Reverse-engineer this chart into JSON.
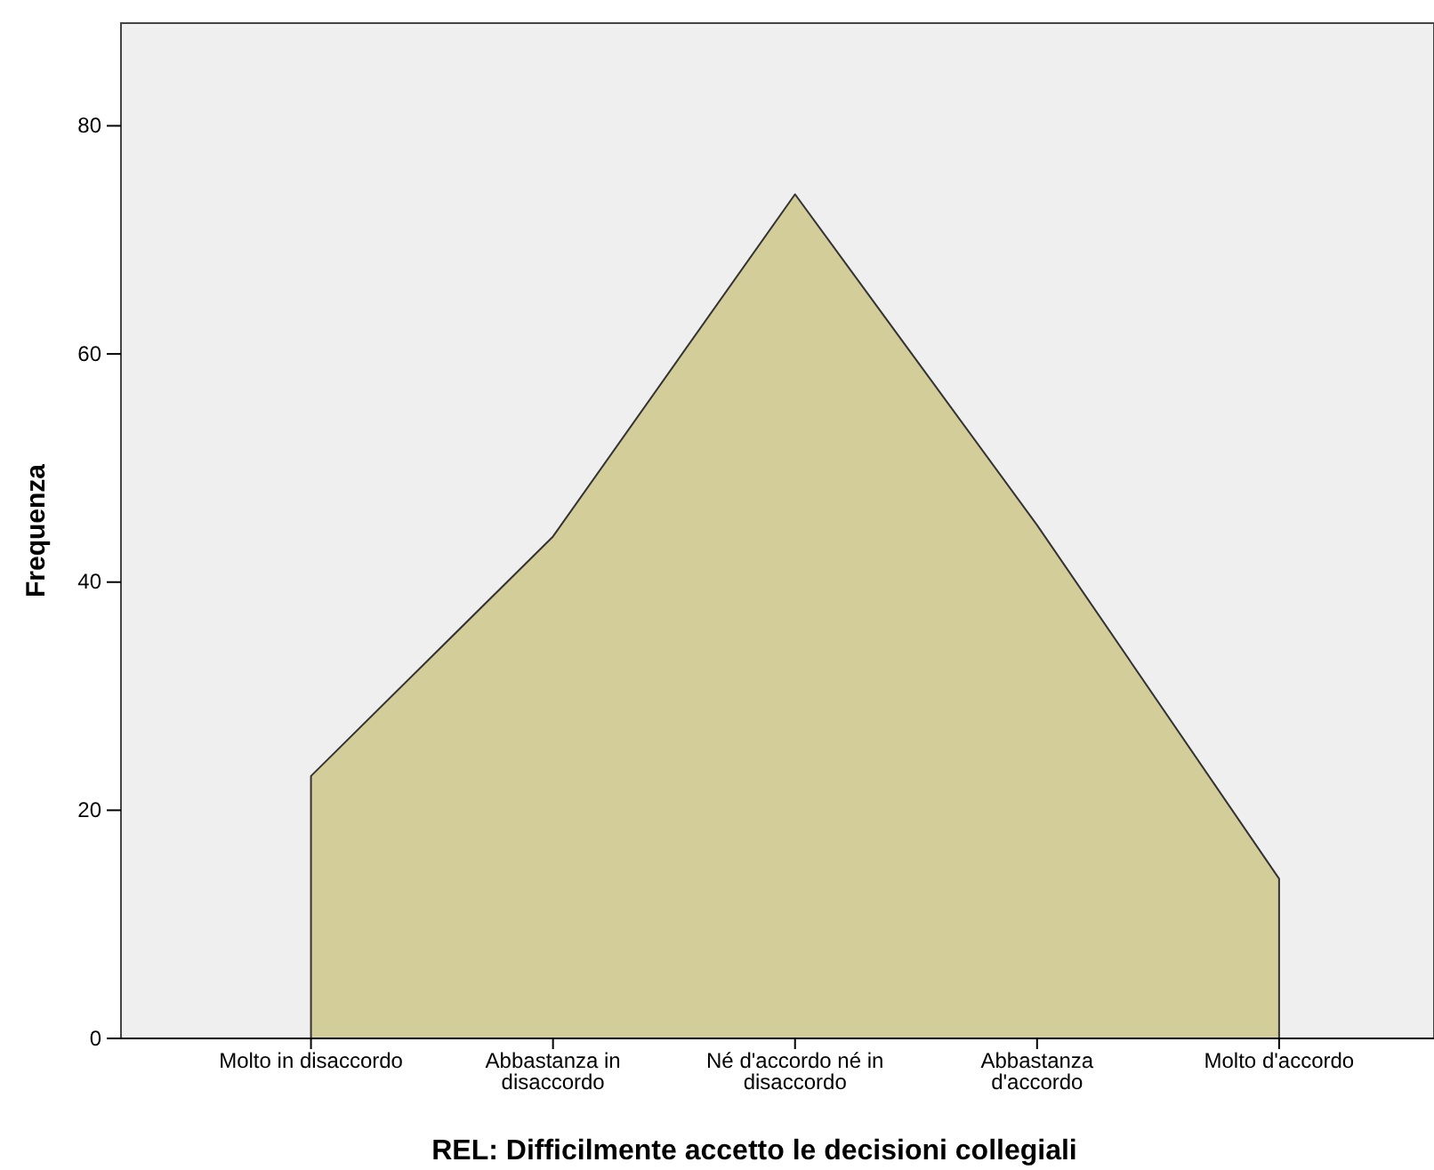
{
  "chart_data": {
    "type": "area",
    "xlabel": "REL: Difficilmente accetto le decisioni collegiali",
    "ylabel": "Frequenza",
    "categories": [
      "Molto in disaccordo",
      "Abbastanza in disaccordo",
      "Né d'accordo né in disaccordo",
      "Abbastanza d'accordo",
      "Molto d'accordo"
    ],
    "series": [
      {
        "color": "#d3ce99",
        "values": [
          23,
          44,
          74,
          45,
          14
        ]
      }
    ],
    "ylim": [
      0,
      89
    ],
    "yticks": [
      0,
      20,
      40,
      60,
      80
    ],
    "grid": false
  }
}
